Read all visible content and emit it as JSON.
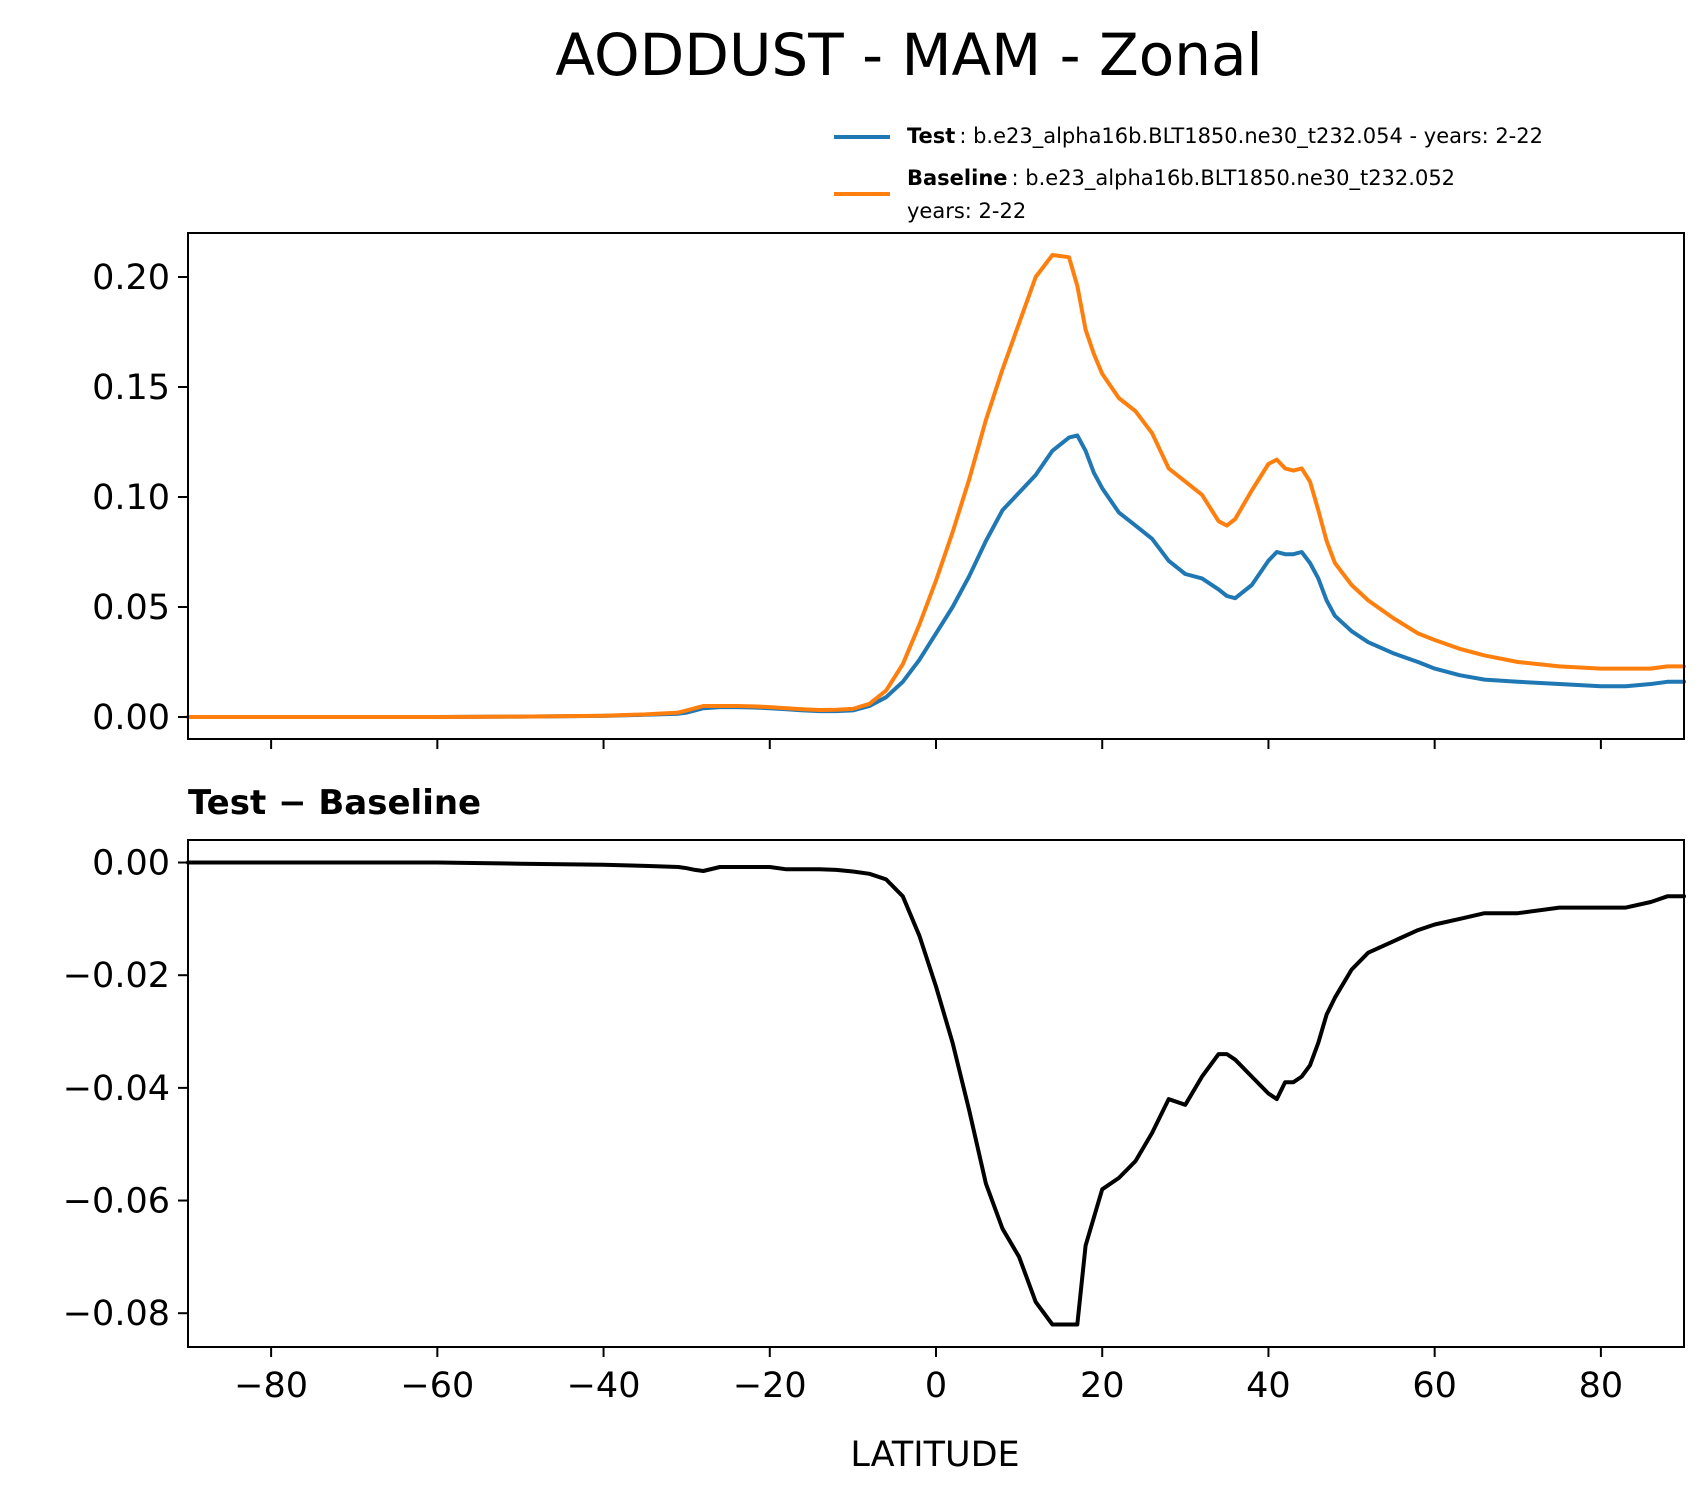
{
  "figure": {
    "title": "AODDUST - MAM - Zonal",
    "xlabel": "LATITUDE"
  },
  "legend": {
    "entries": [
      {
        "name": "Test",
        "text": ": b.e23_alpha16b.BLT1850.ne30_t232.054 - years: 2-22",
        "text2": "",
        "color": "#1f77b4"
      },
      {
        "name": "Baseline",
        "text": ": b.e23_alpha16b.BLT1850.ne30_t232.052",
        "text2": "years: 2-22",
        "color": "#ff7f0e"
      }
    ]
  },
  "chart_data": [
    {
      "type": "line",
      "title": "",
      "xlabel": "",
      "ylabel": "",
      "xlim": [
        -90,
        90
      ],
      "ylim": [
        -0.01,
        0.22
      ],
      "xticks": [
        -80,
        -60,
        -40,
        -20,
        0,
        20,
        40,
        60,
        80
      ],
      "xtick_labels_visible": false,
      "yticks": [
        0.0,
        0.05,
        0.1,
        0.15,
        0.2
      ],
      "ytick_labels": [
        "0.00",
        "0.05",
        "0.10",
        "0.15",
        "0.20"
      ],
      "grid": false,
      "legend": "top-right, above axes",
      "x": [
        -90,
        -80,
        -70,
        -60,
        -50,
        -40,
        -35,
        -31,
        -30,
        -29,
        -28,
        -26,
        -24,
        -22,
        -20,
        -18,
        -16,
        -14,
        -12,
        -10,
        -8,
        -6,
        -4,
        -2,
        0,
        2,
        4,
        6,
        8,
        10,
        12,
        14,
        16,
        17,
        18,
        19,
        20,
        22,
        24,
        26,
        28,
        30,
        32,
        34,
        35,
        36,
        38,
        40,
        41,
        42,
        43,
        44,
        45,
        46,
        47,
        48,
        50,
        52,
        55,
        58,
        60,
        63,
        66,
        70,
        75,
        80,
        83,
        86,
        88,
        90
      ],
      "series": [
        {
          "name": "Test",
          "color": "#1f77b4",
          "values": [
            0.0,
            0.0,
            0.0,
            0.0,
            0.0002,
            0.0005,
            0.001,
            0.0015,
            0.002,
            0.003,
            0.004,
            0.0045,
            0.0045,
            0.0043,
            0.004,
            0.0035,
            0.003,
            0.0027,
            0.0027,
            0.003,
            0.005,
            0.009,
            0.016,
            0.026,
            0.038,
            0.05,
            0.064,
            0.08,
            0.094,
            0.102,
            0.11,
            0.121,
            0.127,
            0.128,
            0.121,
            0.111,
            0.104,
            0.093,
            0.087,
            0.081,
            0.071,
            0.065,
            0.063,
            0.058,
            0.055,
            0.054,
            0.06,
            0.071,
            0.075,
            0.074,
            0.074,
            0.075,
            0.07,
            0.063,
            0.053,
            0.046,
            0.039,
            0.034,
            0.029,
            0.025,
            0.022,
            0.019,
            0.017,
            0.016,
            0.015,
            0.014,
            0.014,
            0.015,
            0.016,
            0.016
          ]
        },
        {
          "name": "Baseline",
          "color": "#ff7f0e",
          "values": [
            0.0,
            0.0,
            0.0,
            0.0,
            0.0002,
            0.0006,
            0.0012,
            0.002,
            0.003,
            0.004,
            0.005,
            0.005,
            0.005,
            0.0048,
            0.0045,
            0.004,
            0.0035,
            0.0032,
            0.0033,
            0.0037,
            0.006,
            0.012,
            0.024,
            0.042,
            0.062,
            0.084,
            0.108,
            0.135,
            0.158,
            0.179,
            0.2,
            0.21,
            0.209,
            0.196,
            0.176,
            0.165,
            0.156,
            0.145,
            0.139,
            0.129,
            0.113,
            0.107,
            0.101,
            0.089,
            0.087,
            0.09,
            0.103,
            0.115,
            0.117,
            0.113,
            0.112,
            0.113,
            0.107,
            0.094,
            0.08,
            0.07,
            0.06,
            0.053,
            0.045,
            0.038,
            0.035,
            0.031,
            0.028,
            0.025,
            0.023,
            0.022,
            0.022,
            0.022,
            0.023,
            0.023
          ]
        }
      ]
    },
    {
      "type": "line",
      "title": "Test − Baseline",
      "xlabel": "LATITUDE",
      "ylabel": "",
      "xlim": [
        -90,
        90
      ],
      "ylim": [
        -0.086,
        0.004
      ],
      "xticks": [
        -80,
        -60,
        -40,
        -20,
        0,
        20,
        40,
        60,
        80
      ],
      "xtick_labels": [
        "−80",
        "−60",
        "−40",
        "−20",
        "0",
        "20",
        "40",
        "60",
        "80"
      ],
      "yticks": [
        0.0,
        -0.02,
        -0.04,
        -0.06,
        -0.08
      ],
      "ytick_labels": [
        "0.00",
        "−0.02",
        "−0.04",
        "−0.06",
        "−0.08"
      ],
      "grid": false,
      "x": [
        -90,
        -80,
        -70,
        -60,
        -50,
        -40,
        -35,
        -31,
        -30,
        -29,
        -28,
        -26,
        -24,
        -22,
        -20,
        -18,
        -16,
        -14,
        -12,
        -10,
        -8,
        -6,
        -4,
        -2,
        0,
        2,
        4,
        6,
        8,
        10,
        12,
        14,
        16,
        17,
        18,
        19,
        20,
        22,
        24,
        26,
        28,
        30,
        32,
        34,
        35,
        36,
        38,
        40,
        41,
        42,
        43,
        44,
        45,
        46,
        47,
        48,
        50,
        52,
        55,
        58,
        60,
        63,
        66,
        70,
        75,
        80,
        83,
        86,
        88,
        90
      ],
      "series": [
        {
          "name": "",
          "color": "#000000",
          "values": [
            0.0,
            0.0,
            0.0,
            0.0,
            -0.0002,
            -0.0004,
            -0.0006,
            -0.0008,
            -0.001,
            -0.0013,
            -0.0015,
            -0.0008,
            -0.0008,
            -0.0008,
            -0.0008,
            -0.0012,
            -0.0012,
            -0.0012,
            -0.0013,
            -0.0016,
            -0.002,
            -0.003,
            -0.006,
            -0.013,
            -0.022,
            -0.032,
            -0.044,
            -0.057,
            -0.065,
            -0.07,
            -0.078,
            -0.082,
            -0.082,
            -0.082,
            -0.068,
            -0.063,
            -0.058,
            -0.056,
            -0.053,
            -0.048,
            -0.042,
            -0.043,
            -0.038,
            -0.034,
            -0.034,
            -0.035,
            -0.038,
            -0.041,
            -0.042,
            -0.039,
            -0.039,
            -0.038,
            -0.036,
            -0.032,
            -0.027,
            -0.024,
            -0.019,
            -0.016,
            -0.014,
            -0.012,
            -0.011,
            -0.01,
            -0.009,
            -0.009,
            -0.008,
            -0.008,
            -0.008,
            -0.007,
            -0.006,
            -0.006
          ]
        }
      ]
    }
  ]
}
